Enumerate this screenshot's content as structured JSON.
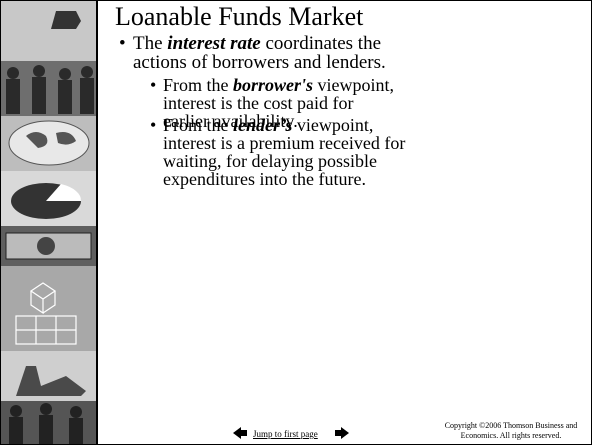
{
  "slide": {
    "title": "Loanable Funds Market",
    "bullets": [
      {
        "before": "The ",
        "emphasis": "interest rate",
        "after": " coordinates the actions of borrowers and lenders.",
        "sub": [
          {
            "before": "From the ",
            "emphasis": "borrower's",
            "after": " viewpoint, interest is the cost paid for earlier availability."
          },
          {
            "before": "From the ",
            "emphasis": "lender’s",
            "after": " viewpoint, interest is a premium received for waiting, for delaying possible expenditures into the future."
          }
        ]
      }
    ],
    "nav": {
      "link": "Jump to first page"
    },
    "copyright": "Copyright ©2006  Thomson Business and Economics. All rights reserved."
  }
}
